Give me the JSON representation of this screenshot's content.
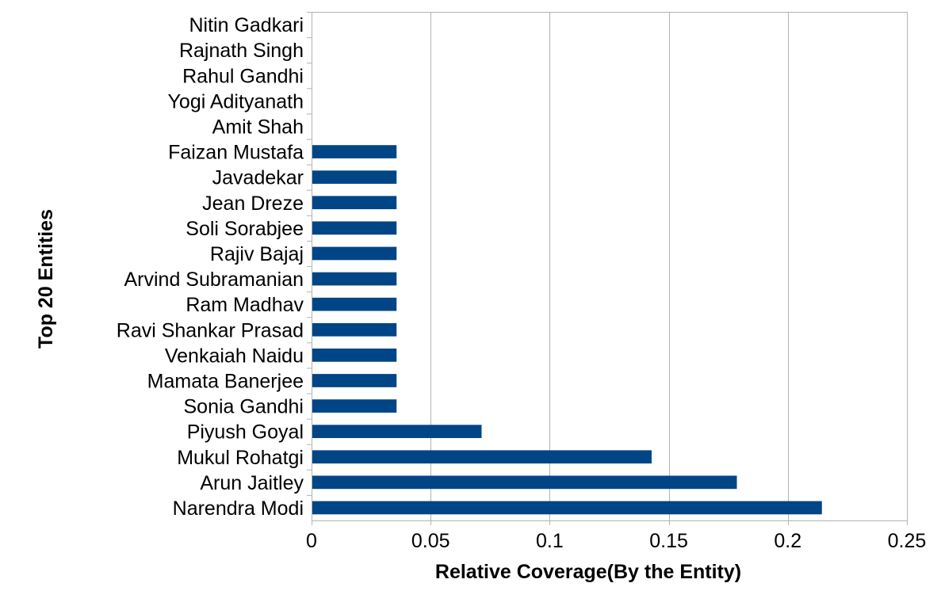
{
  "chart_data": {
    "type": "bar",
    "orientation": "horizontal",
    "title": "",
    "xlabel": "Relative Coverage(By the Entity)",
    "ylabel": "Top 20 Entities",
    "xlim": [
      0,
      0.25
    ],
    "x_ticks": [
      "0",
      "0.05",
      "0.1",
      "0.15",
      "0.2",
      "0.25"
    ],
    "x_tick_values": [
      0,
      0.05,
      0.1,
      0.15,
      0.2,
      0.25
    ],
    "grid": "vertical",
    "legend": "none",
    "bar_color": "#004586",
    "categories": [
      "Nitin Gadkari",
      "Rajnath Singh",
      "Rahul Gandhi",
      "Yogi Adityanath",
      "Amit Shah",
      "Faizan Mustafa",
      "Javadekar",
      "Jean Dreze",
      "Soli Sorabjee",
      "Rajiv Bajaj",
      "Arvind Subramanian",
      "Ram Madhav",
      "Ravi Shankar Prasad",
      "Venkaiah Naidu",
      "Mamata Banerjee",
      "Sonia Gandhi",
      "Piyush Goyal",
      "Mukul Rohatgi",
      "Arun Jaitley",
      "Narendra Modi"
    ],
    "values": [
      0,
      0,
      0,
      0,
      0,
      0.0357,
      0.0357,
      0.0357,
      0.0357,
      0.0357,
      0.0357,
      0.0357,
      0.0357,
      0.0357,
      0.0357,
      0.0357,
      0.0714,
      0.1428,
      0.1786,
      0.2143
    ]
  }
}
